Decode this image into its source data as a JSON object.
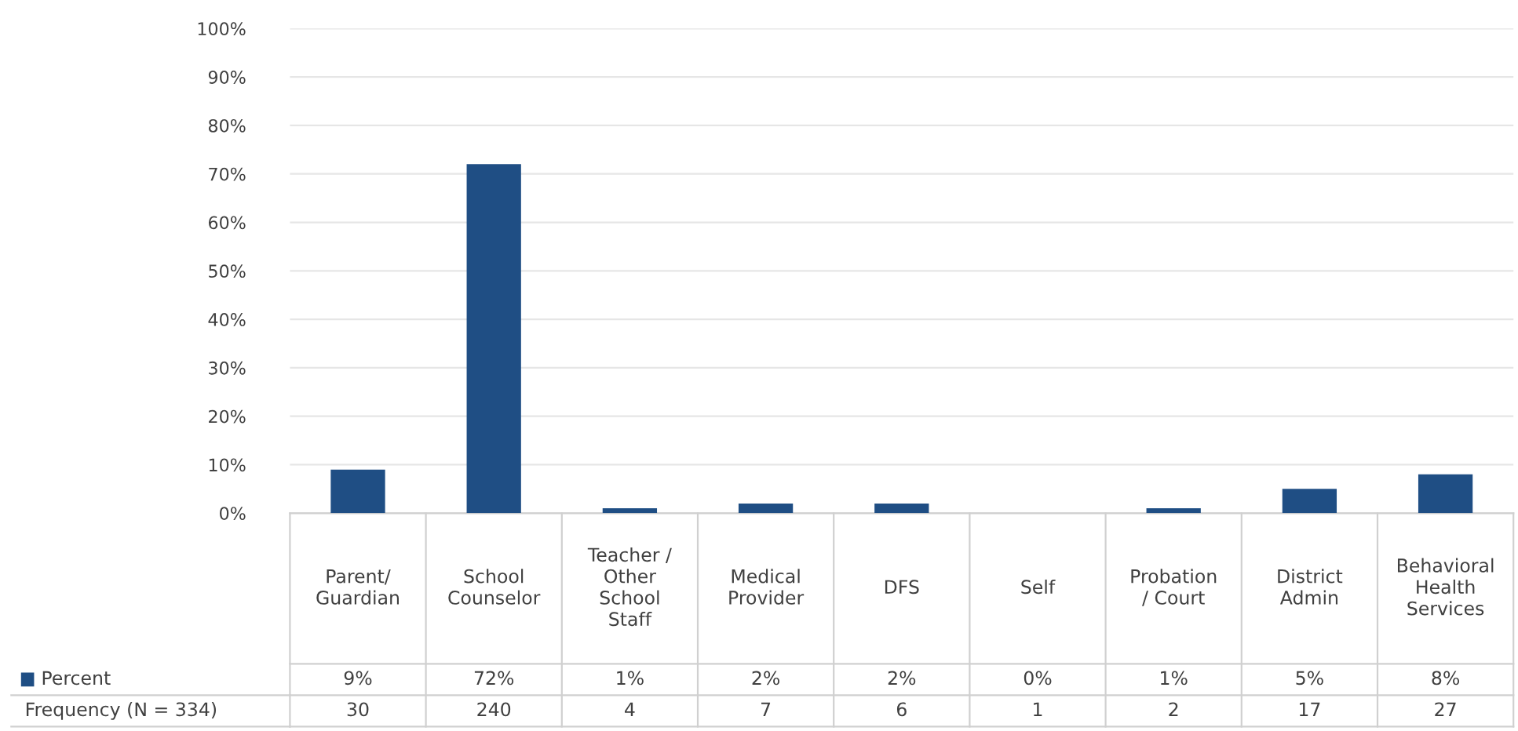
{
  "chart_data": {
    "type": "bar",
    "categories": [
      "Parent/\nGuardian",
      "School\nCounselor",
      "Teacher /\nOther\nSchool\nStaff",
      "Medical\nProvider",
      "DFS",
      "Self",
      "Probation\n/ Court",
      "District\nAdmin",
      "Behavioral\nHealth\nServices"
    ],
    "series": [
      {
        "name": "Percent",
        "color": "#1f4e84",
        "values": [
          9,
          72,
          1,
          2,
          2,
          0,
          1,
          5,
          8
        ],
        "value_labels": [
          "9%",
          "72%",
          "1%",
          "2%",
          "2%",
          "0%",
          "1%",
          "5%",
          "8%"
        ]
      },
      {
        "name": "Frequency (N = 334)",
        "values": [
          null,
          null,
          null,
          null,
          null,
          null,
          null,
          null,
          null
        ],
        "value_labels": [
          "30",
          "240",
          "4",
          "7",
          "6",
          "1",
          "2",
          "17",
          "27"
        ]
      }
    ],
    "ylim": [
      0,
      100
    ],
    "yticks": [
      {
        "value": 0,
        "label": "0%"
      },
      {
        "value": 10,
        "label": "10%"
      },
      {
        "value": 20,
        "label": "20%"
      },
      {
        "value": 30,
        "label": "30%"
      },
      {
        "value": 40,
        "label": "40%"
      },
      {
        "value": 50,
        "label": "50%"
      },
      {
        "value": 60,
        "label": "60%"
      },
      {
        "value": 70,
        "label": "70%"
      },
      {
        "value": 80,
        "label": "80%"
      },
      {
        "value": 90,
        "label": "90%"
      },
      {
        "value": 100,
        "label": "100%"
      }
    ],
    "grid": "y"
  }
}
